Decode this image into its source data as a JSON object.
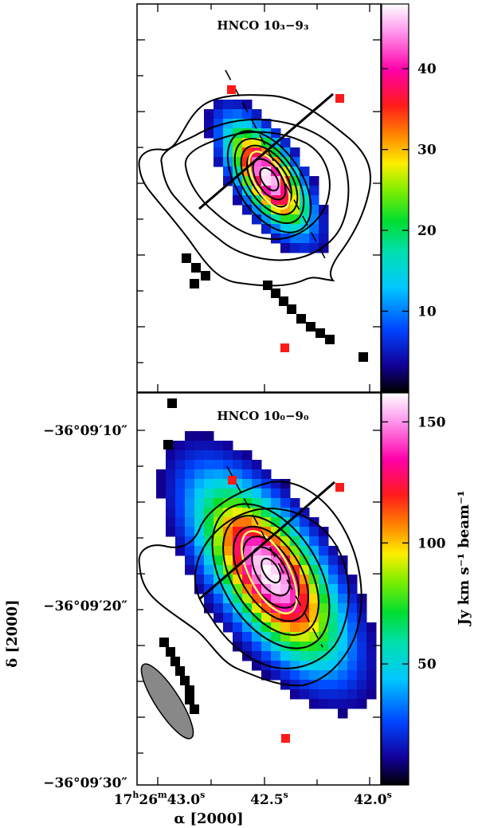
{
  "chart_data": [
    {
      "type": "heatmap",
      "title": "HNCO 10₃−9₃",
      "colorbar": {
        "ticks": [
          10,
          20,
          30,
          40
        ],
        "range": [
          0,
          48
        ]
      },
      "peak": 48,
      "xlabel": "",
      "ylabel": ""
    },
    {
      "type": "heatmap",
      "title": "HNCO 10₀−9₀",
      "colorbar": {
        "ticks": [
          50,
          100,
          150
        ],
        "range": [
          0,
          162
        ]
      },
      "peak": 160,
      "xlabel": "α [2000]",
      "ylabel": "δ [2000]"
    }
  ],
  "axes": {
    "x_ticks": [
      {
        "base": "17",
        "h": "h",
        "mid": "26",
        "m": "m",
        "tail": "43.0",
        "s": "s"
      },
      {
        "tail": "42.5",
        "s": "s"
      },
      {
        "tail": "42.0",
        "s": "s"
      }
    ],
    "y_ticks": [
      "−36°09′10″",
      "−36°09′20″",
      "−36°09′30″"
    ],
    "xlabel": "α [2000]",
    "ylabel": "δ [2000]",
    "colorbar_label": "Jy km s⁻¹ beam⁻¹"
  },
  "colors": {
    "marker": "#ff1a1a",
    "contour": "#000000",
    "inner_contour": "#ffff66",
    "beam": "#888888"
  }
}
